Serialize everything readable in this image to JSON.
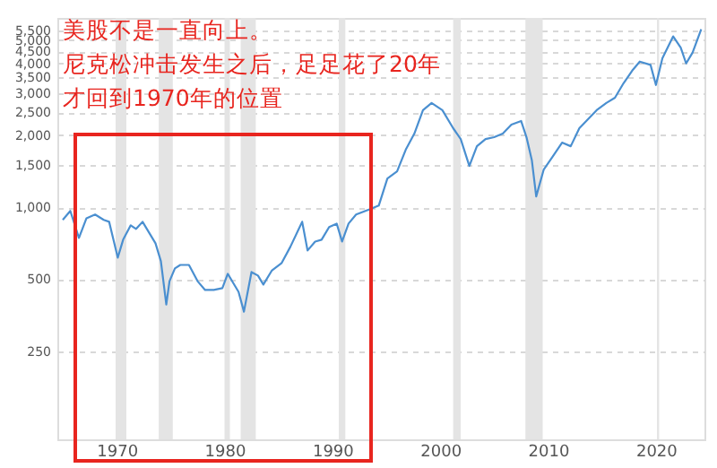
{
  "chart_data": {
    "type": "line",
    "annotations": [
      "美股不是一直向上。",
      "尼克松冲击发生之后，足足花了20年",
      "才回到1970年的位置"
    ],
    "x": [
      1965.0,
      1965.7,
      1966.5,
      1967.2,
      1968.0,
      1968.8,
      1969.3,
      1970.1,
      1970.6,
      1971.3,
      1971.8,
      1972.4,
      1972.8,
      1973.6,
      1974.1,
      1974.6,
      1974.9,
      1975.4,
      1975.9,
      1976.7,
      1977.5,
      1978.2,
      1979.0,
      1979.8,
      1980.3,
      1980.8,
      1981.3,
      1981.8,
      1982.5,
      1983.1,
      1983.6,
      1984.4,
      1985.3,
      1986.1,
      1987.2,
      1987.7,
      1988.4,
      1989.0,
      1989.7,
      1990.4,
      1990.9,
      1991.5,
      1992.2,
      1993.5,
      1994.3,
      1995.1,
      1996.0,
      1996.8,
      1997.6,
      1998.4,
      1999.2,
      2000.2,
      2001.2,
      2001.9,
      2002.7,
      2003.4,
      2004.2,
      2005.0,
      2005.8,
      2006.6,
      2007.5,
      2008.0,
      2008.5,
      2008.9,
      2009.6,
      2010.4,
      2011.3,
      2012.1,
      2012.9,
      2013.7,
      2014.5,
      2015.4,
      2016.2,
      2017.0,
      2017.8,
      2018.5,
      2019.5,
      2020.0,
      2020.6,
      2021.6,
      2022.3,
      2022.8,
      2023.4,
      2024.2
    ],
    "series": [
      {
        "color": "#4a8fd0",
        "values": [
          886,
          966,
          745,
          900,
          933,
          886,
          870,
          616,
          732,
          841,
          812,
          870,
          812,
          707,
          595,
          392,
          491,
          555,
          574,
          574,
          491,
          451,
          451,
          459,
          527,
          483,
          443,
          366,
          536,
          518,
          475,
          545,
          585,
          683,
          870,
          660,
          719,
          732,
          827,
          855,
          719,
          855,
          933,
          983,
          1017,
          1320,
          1414,
          1741,
          2034,
          2549,
          2732,
          2549,
          2143,
          1931,
          1490,
          1801,
          1931,
          1965,
          2034,
          2219,
          2297,
          1965,
          1569,
          1110,
          1440,
          1624,
          1866,
          1801,
          2143,
          2337,
          2549,
          2732,
          2873,
          3306,
          3732,
          4070,
          3945,
          3250,
          4200,
          5190,
          4660,
          4000,
          4440,
          5560
        ]
      }
    ],
    "xlim": [
      1964.5,
      2024.5
    ],
    "xticks": [
      1970,
      1980,
      1990,
      2000,
      2010,
      2020
    ],
    "ylim": [
      107,
      6200
    ],
    "log": true,
    "yticks": [
      250,
      500,
      {
        "value": 1000,
        "label": "1,000"
      },
      {
        "value": 1500,
        "label": "1,500"
      },
      {
        "value": 2000,
        "label": "2,000"
      },
      {
        "value": 2500,
        "label": "2,500"
      },
      {
        "value": 3000,
        "label": "3,000"
      },
      {
        "value": 3500,
        "label": "3,500"
      },
      {
        "value": 4000,
        "label": "4,000"
      },
      {
        "value": 4500,
        "label": "4,500"
      },
      {
        "value": 5000,
        "label": "5,000"
      },
      {
        "value": 5500,
        "label": "5,500"
      }
    ],
    "bands": [
      {
        "axis": "x",
        "from": 1969.9,
        "to": 1970.9,
        "color": "#e4e4e4"
      },
      {
        "axis": "x",
        "from": 1973.9,
        "to": 1975.2,
        "color": "#e4e4e4"
      },
      {
        "axis": "x",
        "from": 1980.0,
        "to": 1980.5,
        "color": "#e4e4e4"
      },
      {
        "axis": "x",
        "from": 1981.5,
        "to": 1982.9,
        "color": "#e4e4e4"
      },
      {
        "axis": "x",
        "from": 1990.6,
        "to": 1991.2,
        "color": "#e4e4e4"
      },
      {
        "axis": "x",
        "from": 2001.2,
        "to": 2001.9,
        "color": "#e4e4e4"
      },
      {
        "axis": "x",
        "from": 2007.9,
        "to": 2009.5,
        "color": "#e4e4e4"
      },
      {
        "axis": "x",
        "from": 2020.1,
        "to": 2020.3,
        "color": "#e4e4e4"
      }
    ],
    "grid": "y",
    "marker": "none",
    "line_style": "solid"
  }
}
